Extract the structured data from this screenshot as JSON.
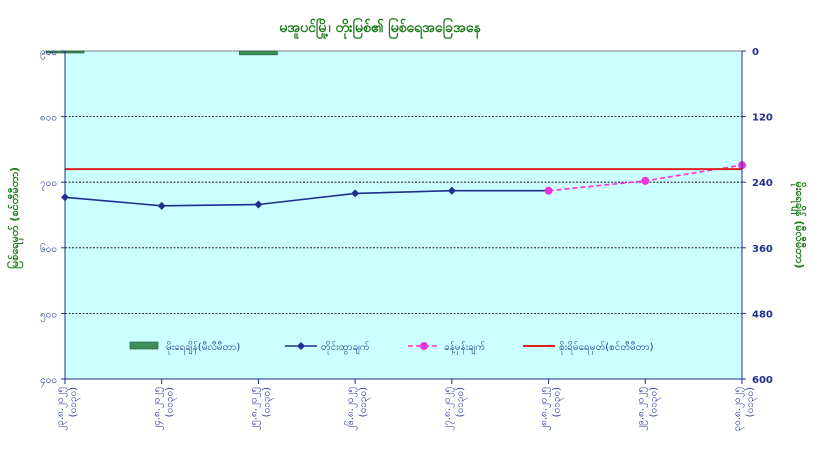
{
  "chart_data": {
    "type": "line",
    "title": "မအူပင်မြို့၊ တိုးမြစ်၏ မြစ်ရေအခြေအနေ",
    "ylabel_left": "မြစ်ရေမှတ် (စင်တီမီတာ)",
    "ylabel_right": "မိုးရေချိန် (မီလီမီတာ)",
    "ylim_left": [
      400,
      900
    ],
    "yticks_left": [
      "၉၀၀",
      "၈၀၀",
      "၇၀၀",
      "၆၀၀",
      "၅၀၀",
      "၄၀၀"
    ],
    "ylim_right": [
      0,
      600
    ],
    "yticks_right": [
      "0",
      "120",
      "240",
      "360",
      "480",
      "600"
    ],
    "categories": [
      "၂၃.၈.၂၀၂၅ (၀၁၃၀)",
      "၂၄.၈.၂၀၂၅ (၀၁၃၀)",
      "၂၅.၈.၂၀၂၅ (၀၁၃၀)",
      "၂၆.၈.၂၀၂၅ (၀၁၃၀)",
      "၂၇.၈.၂၀၂၅ (၀၁၃၀)",
      "၂၈.၈.၂၀၂၅ (၀၁၃၀)",
      "၂၉.၈.၂၀၂၅ (၀၁၃၀)",
      "၃၀.၈.၂၀၂၅ (၀၁၃၀)"
    ],
    "series": [
      {
        "name": "မိုးရေချိန်(မီလီမီတာ)",
        "kind": "bar",
        "axis": "right",
        "color": "#3f8f5a",
        "values": [
          3,
          null,
          7,
          null,
          null,
          null,
          null,
          null
        ]
      },
      {
        "name": "တိုင်းထွာချက်",
        "kind": "line",
        "axis": "left",
        "color": "#1f2f8f",
        "values": [
          677,
          664,
          666,
          683,
          687,
          687,
          null,
          null
        ]
      },
      {
        "name": "ခန့်မှန်းချက်",
        "kind": "dashed-line",
        "axis": "left",
        "color": "#ee33dd",
        "values": [
          null,
          null,
          null,
          null,
          null,
          687,
          702,
          726
        ]
      },
      {
        "name": "စိုးရိမ်ရေမှတ်(စင်တီမီတာ)",
        "kind": "reference",
        "axis": "left",
        "color": "#e02020",
        "value": 720
      }
    ],
    "grid": true,
    "legend": "bottom-inside",
    "plot_background": "#ccffff"
  }
}
